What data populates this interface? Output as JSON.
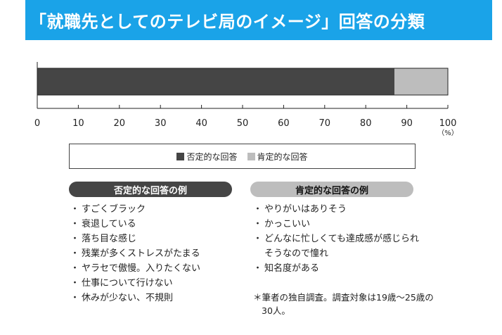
{
  "title": "「就職先としてのテレビ局のイメージ」回答の分類",
  "colors": {
    "title_bg": "#1aa3e8",
    "negative": "#454545",
    "positive": "#bdbdbd"
  },
  "chart_data": {
    "type": "bar",
    "orientation": "horizontal",
    "stacked": true,
    "categories": [
      ""
    ],
    "series": [
      {
        "name": "否定的な回答",
        "values": [
          87
        ]
      },
      {
        "name": "肯定的な回答",
        "values": [
          13
        ]
      }
    ],
    "xlim": [
      0,
      100
    ],
    "xticks": [
      "0",
      "10",
      "20",
      "30",
      "40",
      "50",
      "60",
      "70",
      "80",
      "90",
      "100"
    ],
    "xunit": "（%）",
    "legend_position": "bottom",
    "grid": false
  },
  "legend": {
    "negative": "否定的な回答",
    "positive": "肯定的な回答"
  },
  "negative_examples": {
    "heading": "否定的な回答の例",
    "items": [
      "すごくブラック",
      "衰退している",
      "落ち目な感じ",
      "残業が多くストレスがたまる",
      "ヤラセで傲慢。入りたくない",
      "仕事について行けない",
      "休みが少ない、不規則"
    ]
  },
  "positive_examples": {
    "heading": "肯定的な回答の例",
    "items": [
      "やりがいはありそう",
      "かっこいい",
      "どんなに忙しくても達成感が感じられそうなので憧れ",
      "知名度がある"
    ]
  },
  "note": "＊筆者の独自調査。調査対象は19歳〜25歳の30人。"
}
